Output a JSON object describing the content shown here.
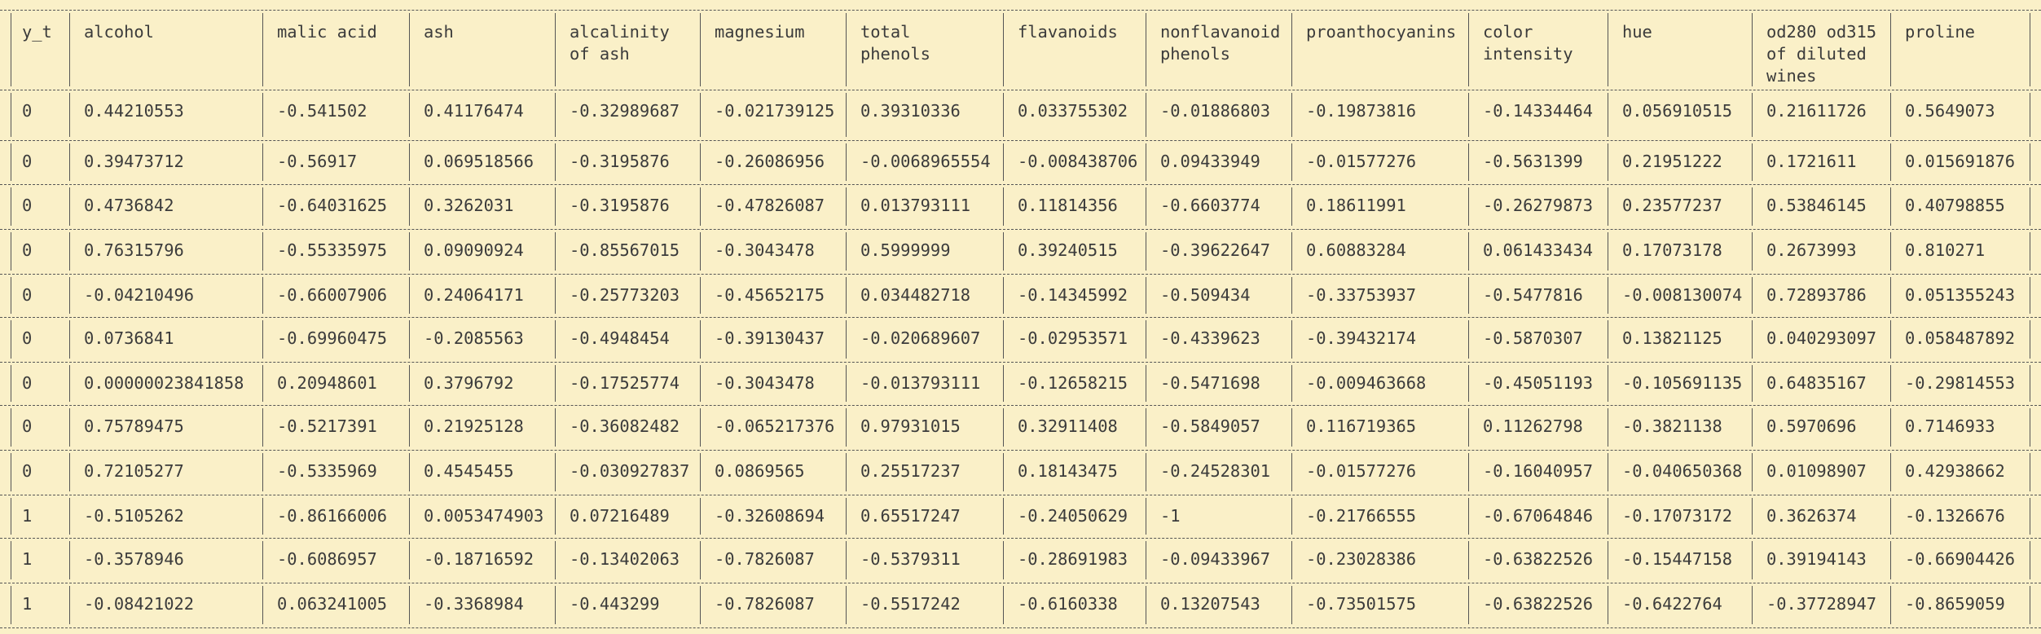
{
  "columns": [
    "y_t",
    "alcohol",
    "malic acid",
    "ash",
    "alcalinity\nof ash",
    "magnesium",
    "total\nphenols",
    "flavanoids",
    "nonflavanoid\nphenols",
    "proanthocyanins",
    "color\nintensity",
    "hue",
    "od280 od315\nof diluted\nwines",
    "proline"
  ],
  "rows": [
    [
      "0",
      "0.44210553",
      "-0.541502",
      "0.41176474",
      "-0.32989687",
      "-0.021739125",
      "0.39310336",
      "0.033755302",
      "-0.01886803",
      "-0.19873816",
      "-0.14334464",
      "0.056910515",
      "0.21611726",
      "0.5649073"
    ],
    [
      "0",
      "0.39473712",
      "-0.56917",
      "0.069518566",
      "-0.3195876",
      "-0.26086956",
      "-0.0068965554",
      "-0.008438706",
      "0.09433949",
      "-0.01577276",
      "-0.5631399",
      "0.21951222",
      "0.1721611",
      "0.015691876"
    ],
    [
      "0",
      "0.4736842",
      "-0.64031625",
      "0.3262031",
      "-0.3195876",
      "-0.47826087",
      "0.013793111",
      "0.11814356",
      "-0.6603774",
      "0.18611991",
      "-0.26279873",
      "0.23577237",
      "0.53846145",
      "0.40798855"
    ],
    [
      "0",
      "0.76315796",
      "-0.55335975",
      "0.09090924",
      "-0.85567015",
      "-0.3043478",
      "0.5999999",
      "0.39240515",
      "-0.39622647",
      "0.60883284",
      "0.061433434",
      "0.17073178",
      "0.2673993",
      "0.810271"
    ],
    [
      "0",
      "-0.04210496",
      "-0.66007906",
      "0.24064171",
      "-0.25773203",
      "-0.45652175",
      "0.034482718",
      "-0.14345992",
      "-0.509434",
      "-0.33753937",
      "-0.5477816",
      "-0.008130074",
      "0.72893786",
      "0.051355243"
    ],
    [
      "0",
      "0.0736841",
      "-0.69960475",
      "-0.2085563",
      "-0.4948454",
      "-0.39130437",
      "-0.020689607",
      "-0.02953571",
      "-0.4339623",
      "-0.39432174",
      "-0.5870307",
      "0.13821125",
      "0.040293097",
      "0.058487892"
    ],
    [
      "0",
      "0.00000023841858",
      "0.20948601",
      "0.3796792",
      "-0.17525774",
      "-0.3043478",
      "-0.013793111",
      "-0.12658215",
      "-0.5471698",
      "-0.009463668",
      "-0.45051193",
      "-0.105691135",
      "0.64835167",
      "-0.29814553"
    ],
    [
      "0",
      "0.75789475",
      "-0.5217391",
      "0.21925128",
      "-0.36082482",
      "-0.065217376",
      "0.97931015",
      "0.32911408",
      "-0.5849057",
      "0.116719365",
      "0.11262798",
      "-0.3821138",
      "0.5970696",
      "0.7146933"
    ],
    [
      "0",
      "0.72105277",
      "-0.5335969",
      "0.4545455",
      "-0.030927837",
      "0.0869565",
      "0.25517237",
      "0.18143475",
      "-0.24528301",
      "-0.01577276",
      "-0.16040957",
      "-0.040650368",
      "0.01098907",
      "0.42938662"
    ],
    [
      "1",
      "-0.5105262",
      "-0.86166006",
      "0.0053474903",
      "0.07216489",
      "-0.32608694",
      "0.65517247",
      "-0.24050629",
      "-1",
      "-0.21766555",
      "-0.67064846",
      "-0.17073172",
      "0.3626374",
      "-0.1326676"
    ],
    [
      "1",
      "-0.3578946",
      "-0.6086957",
      "-0.18716592",
      "-0.13402063",
      "-0.7826087",
      "-0.5379311",
      "-0.28691983",
      "-0.09433967",
      "-0.23028386",
      "-0.63822526",
      "-0.15447158",
      "0.39194143",
      "-0.66904426"
    ],
    [
      "1",
      "-0.08421022",
      "0.063241005",
      "-0.3368984",
      "-0.443299",
      "-0.7826087",
      "-0.5517242",
      "-0.6160338",
      "0.13207543",
      "-0.73501575",
      "-0.63822526",
      "-0.6422764",
      "-0.37728947",
      "-0.8659059"
    ]
  ]
}
